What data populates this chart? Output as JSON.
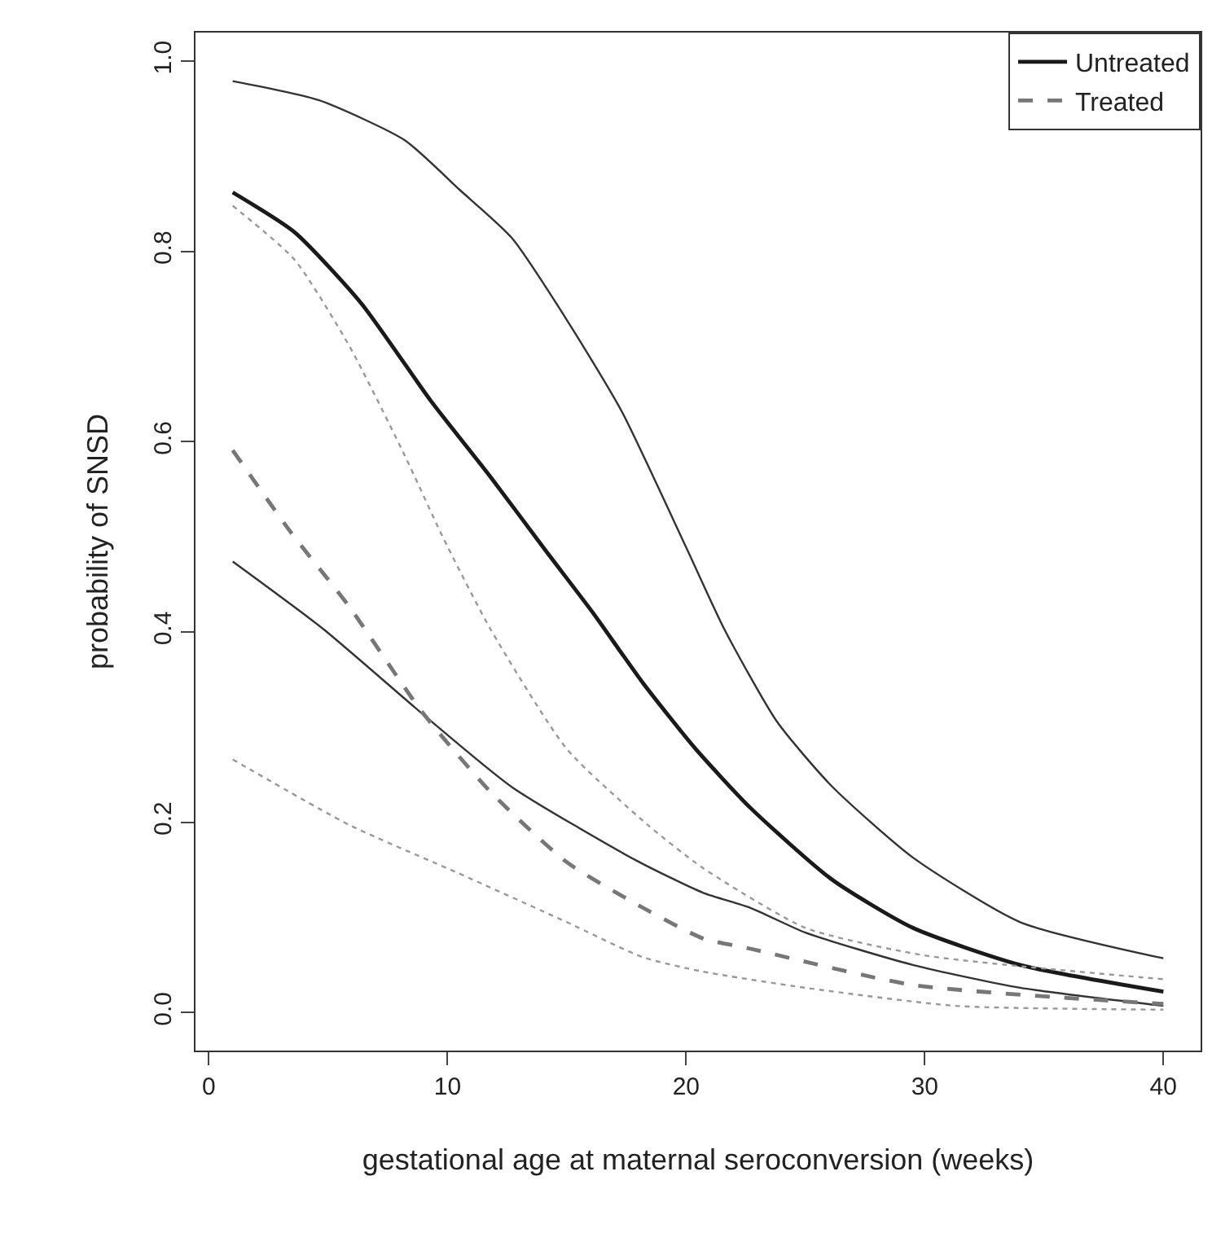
{
  "chart_data": {
    "type": "line",
    "xlabel": "gestational age at maternal seroconversion (weeks)",
    "ylabel": "probability of SNSD",
    "xlim": [
      -0.56,
      41.56
    ],
    "xticks": [
      0,
      10,
      20,
      30,
      40
    ],
    "ylim": [
      -0.04,
      1.03
    ],
    "yticks": [
      {
        "value": 0,
        "label": "0.0"
      },
      0.2,
      0.4,
      0.6,
      0.8,
      {
        "value": 1,
        "label": "1.0"
      }
    ],
    "legend": "top right",
    "grid": false,
    "series": [
      {
        "name": "Untreated",
        "color": "#1a1a1a",
        "line_style": "solid",
        "x": [
          1,
          3.6,
          6.4,
          9.3,
          11.8,
          14.1,
          16.1,
          18.2,
          20.4,
          22.7,
          26.1,
          29.5,
          34,
          40
        ],
        "values": [
          0.862,
          0.82,
          0.745,
          0.643,
          0.563,
          0.486,
          0.42,
          0.346,
          0.277,
          0.215,
          0.14,
          0.089,
          0.05,
          0.022
        ]
      },
      {
        "color": "#333333",
        "line_style": "solid",
        "x": [
          1,
          4.6,
          8.2,
          10.5,
          12.7,
          15,
          17.3,
          20,
          21.6,
          23.8,
          26.1,
          29.5,
          34,
          40
        ],
        "values": [
          0.979,
          0.959,
          0.917,
          0.865,
          0.814,
          0.728,
          0.632,
          0.489,
          0.403,
          0.306,
          0.238,
          0.163,
          0.095,
          0.057
        ]
      },
      {
        "color": "#333333",
        "line_style": "solid",
        "x": [
          1,
          4.8,
          8.9,
          12.7,
          17.9,
          20.7,
          22.7,
          25,
          29.5,
          34,
          40
        ],
        "values": [
          0.474,
          0.403,
          0.315,
          0.237,
          0.16,
          0.126,
          0.11,
          0.084,
          0.05,
          0.026,
          0.007
        ]
      },
      {
        "name": "Treated",
        "color": "#777777",
        "line_style": "dashed",
        "x": [
          1,
          3.4,
          5.9,
          8.9,
          11.8,
          15,
          18.2,
          20.7,
          22.7,
          29.5,
          40
        ],
        "values": [
          0.591,
          0.506,
          0.426,
          0.317,
          0.232,
          0.158,
          0.11,
          0.078,
          0.067,
          0.029,
          0.009
        ]
      },
      {
        "color": "#999999",
        "line_style": "dotted",
        "x": [
          1,
          3.6,
          5.9,
          8.2,
          9.8,
          11.8,
          15,
          18.4,
          20.7,
          25,
          30,
          40
        ],
        "values": [
          0.848,
          0.791,
          0.7,
          0.586,
          0.5,
          0.403,
          0.277,
          0.197,
          0.152,
          0.089,
          0.06,
          0.035
        ]
      },
      {
        "color": "#999999",
        "line_style": "dotted",
        "x": [
          1,
          5.9,
          10.5,
          15,
          18.2,
          20.7,
          25,
          31.3,
          40
        ],
        "values": [
          0.266,
          0.197,
          0.146,
          0.095,
          0.058,
          0.043,
          0.026,
          0.007,
          0.003
        ]
      }
    ]
  }
}
